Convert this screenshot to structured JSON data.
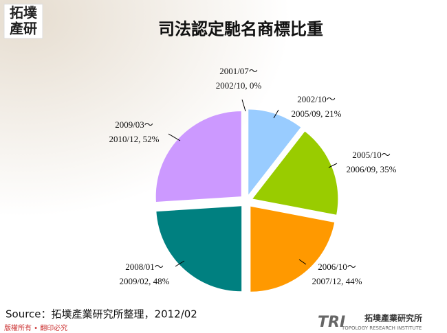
{
  "chart_data": {
    "type": "pie",
    "title": "司法認定馳名商標比重",
    "categories": [
      "2001/07～",
      "2002/10～",
      "2005/10～",
      "2006/10～",
      "2008/01～",
      "2009/03～"
    ],
    "values": [
      0,
      21,
      35,
      44,
      48,
      52
    ],
    "value_labels": [
      "2002/10, 0%",
      "2005/09, 21%",
      "2006/09, 35%",
      "2007/12, 44%",
      "2009/02, 48%",
      "2010/12, 52%"
    ],
    "colors": [
      "#99ccff",
      "#99ccff",
      "#99cc00",
      "#ff9900",
      "#008080",
      "#cc99ff"
    ],
    "source": "Source：拓墣產業研究所整理，2012/02"
  },
  "header": {
    "logo_line1": "拓墣",
    "logo_line2": "產研"
  },
  "footer": {
    "copyright": "版權所有 • 翻印必究",
    "logo_mark": "TRI",
    "logo_name": "拓墣產業研究所",
    "logo_english": "TOPOLOGY RESEARCH INSTITUTE"
  }
}
